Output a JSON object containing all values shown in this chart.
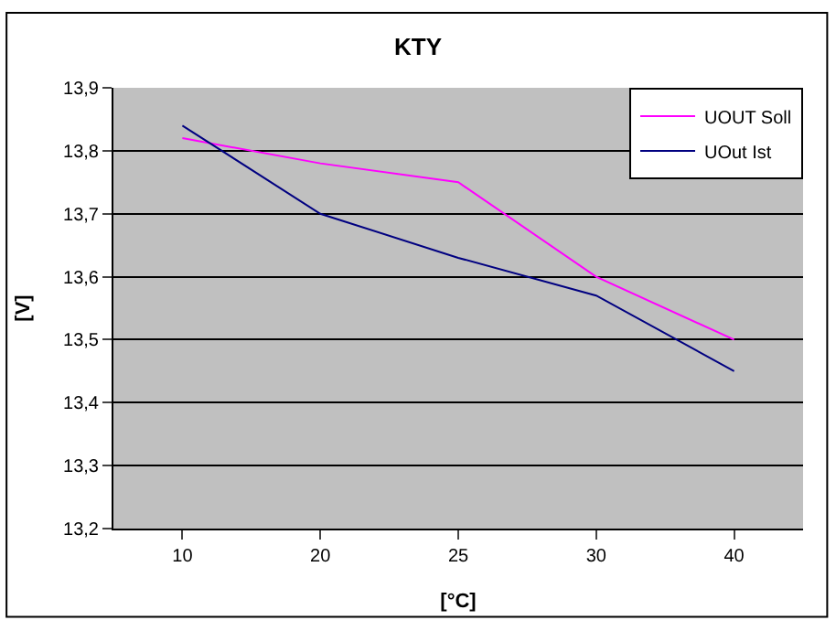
{
  "chart_data": {
    "type": "line",
    "title": "KTY",
    "xlabel": "[°C]",
    "ylabel": "[V]",
    "categories": [
      "10",
      "20",
      "25",
      "30",
      "40"
    ],
    "series": [
      {
        "name": "UOUT Soll",
        "color": "#ff00ff",
        "values": [
          13.82,
          13.78,
          13.75,
          13.6,
          13.5
        ]
      },
      {
        "name": "UOut Ist",
        "color": "#000080",
        "values": [
          13.84,
          13.7,
          13.63,
          13.57,
          13.45
        ]
      }
    ],
    "ylim": [
      13.2,
      13.9
    ],
    "yticks": [
      {
        "value": 13.2,
        "label": "13,2"
      },
      {
        "value": 13.3,
        "label": "13,3"
      },
      {
        "value": 13.4,
        "label": "13,4"
      },
      {
        "value": 13.5,
        "label": "13,5"
      },
      {
        "value": 13.6,
        "label": "13,6"
      },
      {
        "value": 13.7,
        "label": "13,7"
      },
      {
        "value": 13.8,
        "label": "13,8"
      },
      {
        "value": 13.9,
        "label": "13,9"
      }
    ],
    "grid": "y",
    "legend": "top right",
    "marker": "none",
    "line_style": "solid"
  }
}
